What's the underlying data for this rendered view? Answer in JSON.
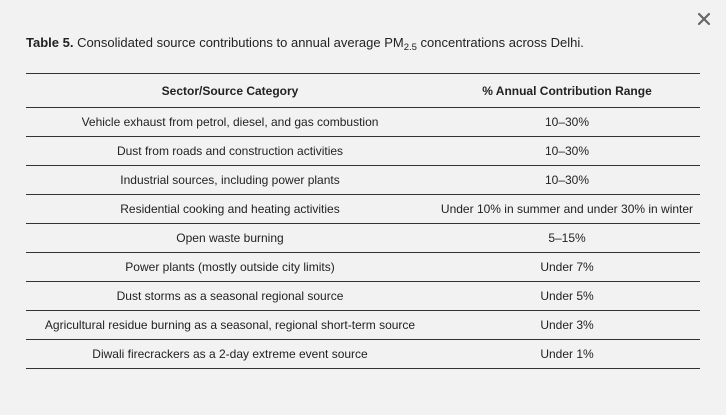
{
  "close_label": "✕",
  "caption": {
    "label": "Table 5.",
    "text_before": " Consolidated source contributions to annual average PM",
    "subscript": "2.5",
    "text_after": " concentrations across Delhi."
  },
  "table": {
    "headers": [
      "Sector/Source Category",
      "% Annual Contribution Range"
    ],
    "rows": [
      [
        "Vehicle exhaust from petrol, diesel, and gas combustion",
        "10–30%"
      ],
      [
        "Dust from roads and construction activities",
        "10–30%"
      ],
      [
        "Industrial sources, including power plants",
        "10–30%"
      ],
      [
        "Residential cooking and heating activities",
        "Under 10% in summer and under 30% in winter"
      ],
      [
        "Open waste burning",
        "5–15%"
      ],
      [
        "Power plants (mostly outside city limits)",
        "Under 7%"
      ],
      [
        "Dust storms as a seasonal regional source",
        "Under 5%"
      ],
      [
        "Agricultural residue burning as a seasonal, regional short-term source",
        "Under 3%"
      ],
      [
        "Diwali firecrackers as a 2-day extreme event source",
        "Under 1%"
      ]
    ]
  }
}
